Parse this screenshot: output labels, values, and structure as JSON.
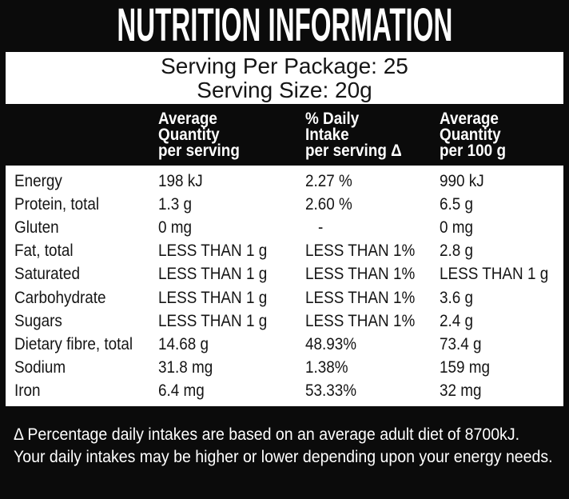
{
  "colors": {
    "band_black": "#0b0b0b",
    "panel_white": "#ffffff",
    "text_black": "#151515",
    "text_white": "#ffffff"
  },
  "title": "NUTRITION INFORMATION",
  "serving": {
    "per_package": "Serving Per Package: 25",
    "size": "Serving Size: 20g"
  },
  "table": {
    "headers": [
      {
        "lines": [
          "Average",
          "Quantity",
          "per serving"
        ]
      },
      {
        "lines": [
          "% Daily",
          "Intake",
          "per serving Δ"
        ]
      },
      {
        "lines": [
          "Average",
          "Quantity",
          "per 100 g"
        ]
      }
    ],
    "rows": [
      {
        "nutrient": "Energy",
        "per_serving": "198 kJ",
        "daily_intake": "2.27 %",
        "per_100g": "990 kJ"
      },
      {
        "nutrient": "Protein, total",
        "per_serving": "1.3 g",
        "daily_intake": "2.60 %",
        "per_100g": "6.5 g"
      },
      {
        "nutrient": "Gluten",
        "per_serving": "0 mg",
        "daily_intake": "-",
        "per_100g": "0 mg"
      },
      {
        "nutrient": "Fat, total",
        "per_serving": "LESS THAN 1 g",
        "daily_intake": "LESS THAN 1%",
        "per_100g": "2.8 g"
      },
      {
        "nutrient": "Saturated",
        "per_serving": "LESS THAN 1 g",
        "daily_intake": "LESS THAN 1%",
        "per_100g": "LESS THAN 1 g"
      },
      {
        "nutrient": "Carbohydrate",
        "per_serving": "LESS THAN 1 g",
        "daily_intake": "LESS THAN 1%",
        "per_100g": "3.6 g"
      },
      {
        "nutrient": "Sugars",
        "per_serving": "LESS THAN 1 g",
        "daily_intake": "LESS THAN 1%",
        "per_100g": "2.4 g"
      },
      {
        "nutrient": "Dietary fibre, total",
        "per_serving": "14.68 g",
        "daily_intake": "48.93%",
        "per_100g": "73.4 g"
      },
      {
        "nutrient": "Sodium",
        "per_serving": "31.8 mg",
        "daily_intake": "1.38%",
        "per_100g": "159 mg"
      },
      {
        "nutrient": "Iron",
        "per_serving": "6.4 mg",
        "daily_intake": "53.33%",
        "per_100g": "32 mg"
      }
    ]
  },
  "footnote": {
    "line1": "Δ Percentage daily intakes are based on an average adult diet of 8700kJ.",
    "line2": "Your daily intakes may be higher or lower depending upon your energy needs."
  }
}
